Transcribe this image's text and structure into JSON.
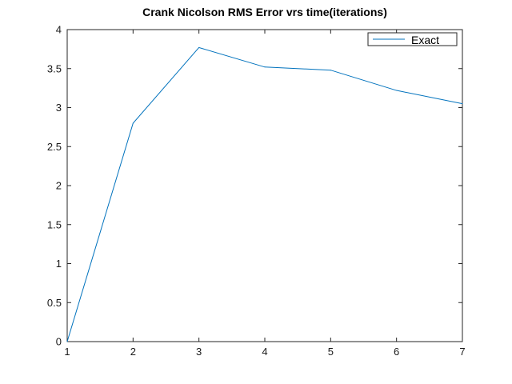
{
  "chart_data": {
    "type": "line",
    "title": "Crank Nicolson RMS Error vrs time(iterations)",
    "xlabel": "",
    "ylabel": "",
    "xlim": [
      1,
      7
    ],
    "ylim": [
      0,
      4
    ],
    "xticks": [
      "1",
      "2",
      "3",
      "4",
      "5",
      "6",
      "7"
    ],
    "yticks": [
      "0",
      "0.5",
      "1",
      "1.5",
      "2",
      "2.5",
      "3",
      "3.5",
      "4"
    ],
    "grid": false,
    "legend_position": "top-right",
    "series": [
      {
        "name": "Exact",
        "color": "#0072bd",
        "x": [
          1,
          2,
          3,
          4,
          5,
          6,
          7
        ],
        "y": [
          0,
          2.8,
          3.77,
          3.52,
          3.48,
          3.22,
          3.05
        ]
      }
    ]
  }
}
